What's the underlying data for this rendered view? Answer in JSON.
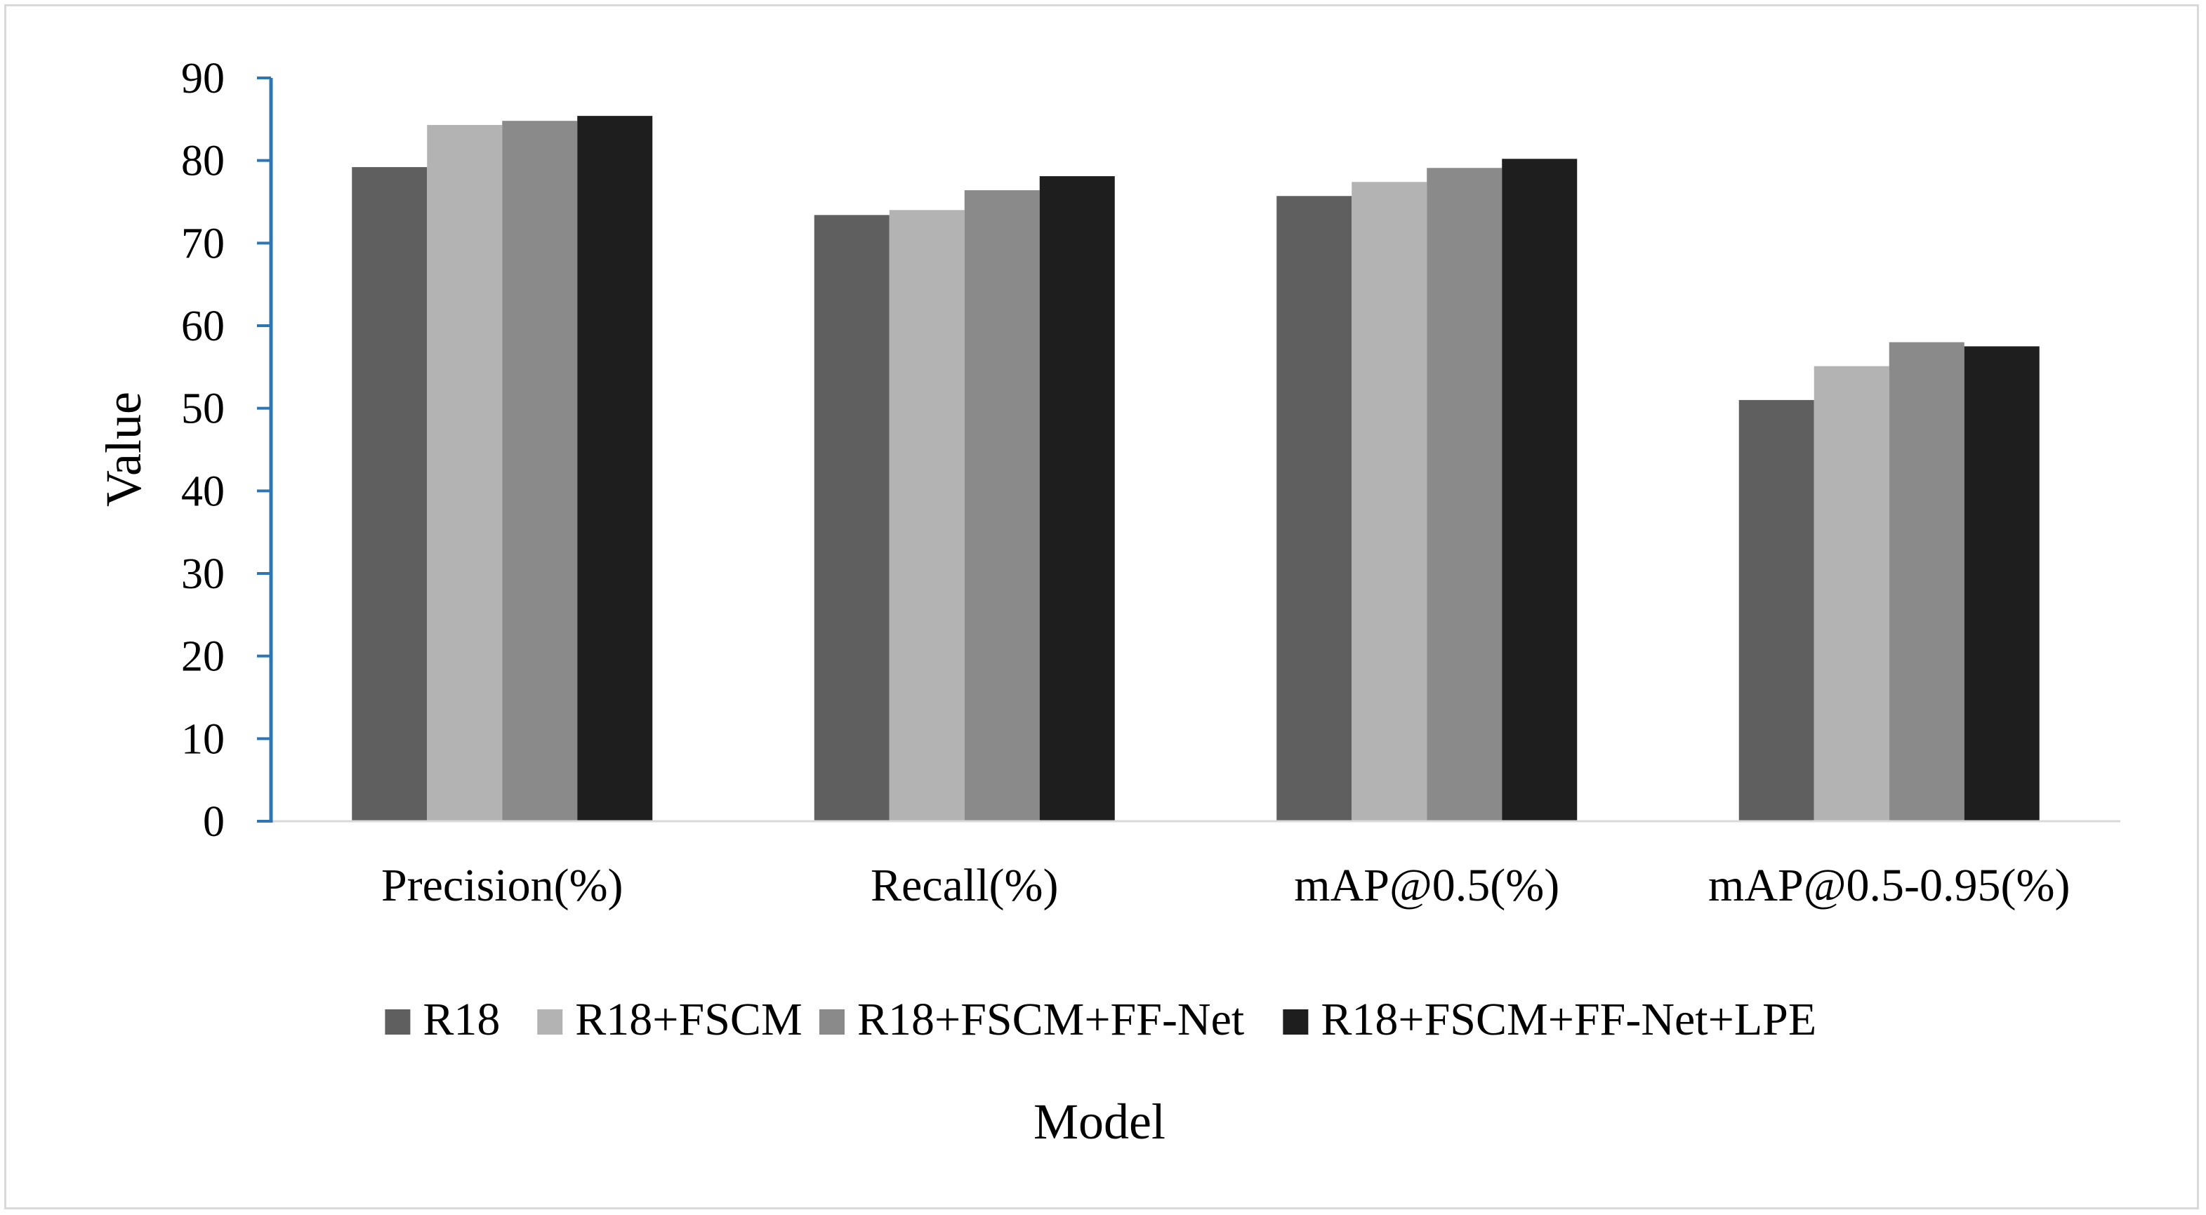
{
  "chart_data": {
    "type": "bar",
    "title": "",
    "xlabel": "Model",
    "ylabel": "Value",
    "ylim": [
      0,
      90
    ],
    "yticks": [
      0,
      10,
      20,
      30,
      40,
      50,
      60,
      70,
      80,
      90
    ],
    "grid": false,
    "legend_position": "bottom",
    "categories": [
      "Precision(%)",
      "Recall(%)",
      "mAP@0.5(%)",
      "mAP@0.5-0.95(%)"
    ],
    "series": [
      {
        "name": "R18",
        "color": "#5f5f5f",
        "values": [
          79.2,
          73.4,
          75.7,
          51.0
        ]
      },
      {
        "name": "R18+FSCM",
        "color": "#b3b3b3",
        "values": [
          84.3,
          74.0,
          77.4,
          55.1
        ]
      },
      {
        "name": "R18+FSCM+FF-Net",
        "color": "#8a8a8a",
        "values": [
          84.8,
          76.4,
          79.1,
          58.0
        ]
      },
      {
        "name": "R18+FSCM+FF-Net+LPE",
        "color": "#1e1e1e",
        "values": [
          85.4,
          78.1,
          80.2,
          57.5
        ]
      }
    ],
    "colors": {
      "axis": "#2e75b6",
      "border": "#d9d9d9"
    }
  }
}
